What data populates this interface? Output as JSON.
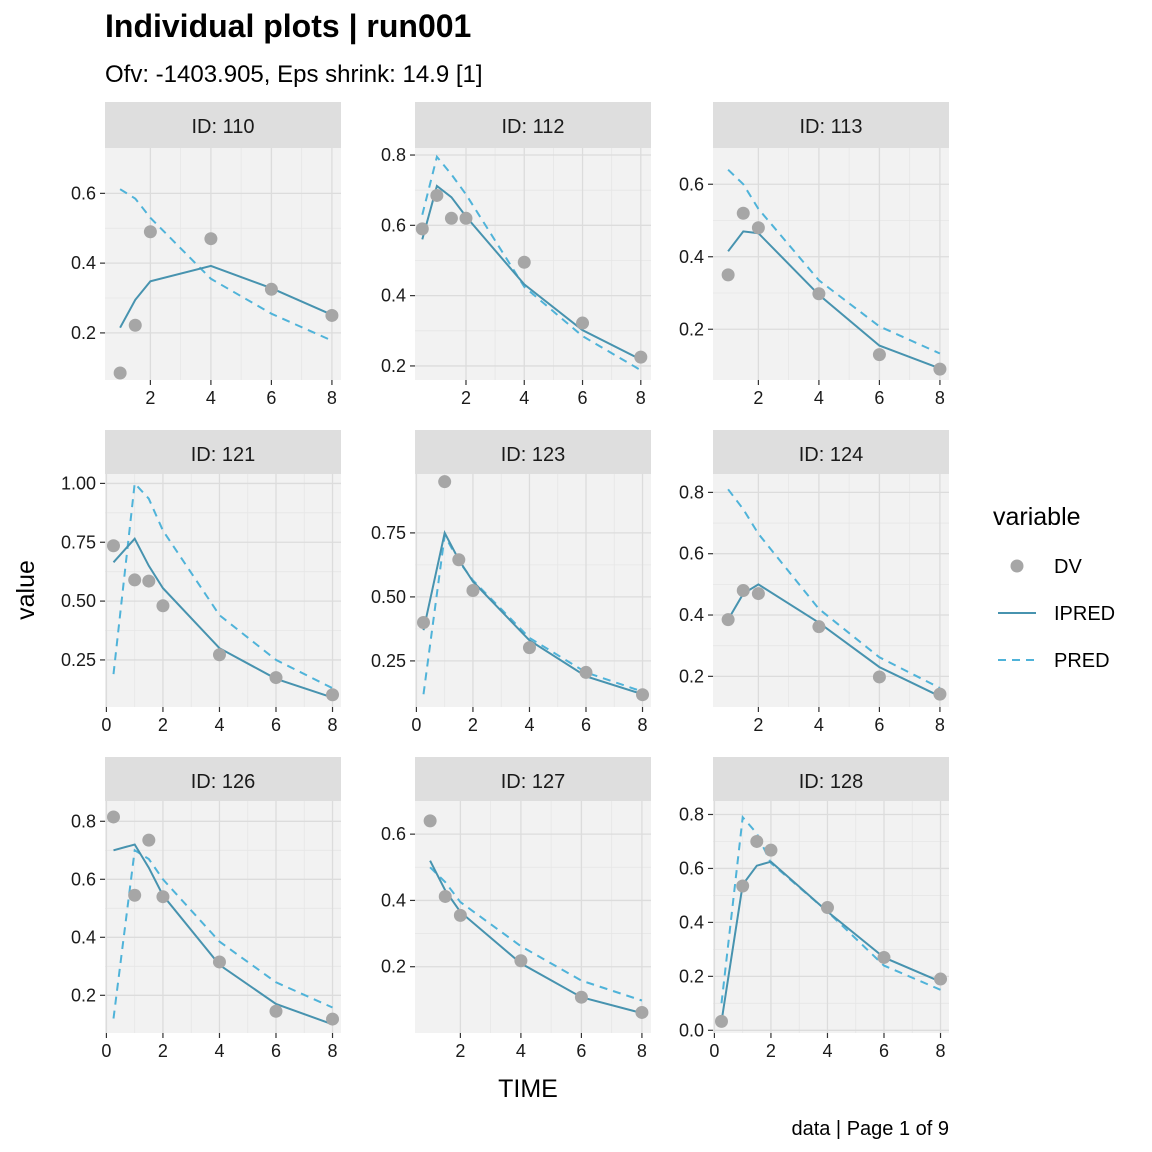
{
  "title": "Individual plots | run001",
  "subtitle": "Ofv: -1403.905, Eps shrink: 14.9 [1]",
  "xlabel": "TIME",
  "ylabel": "value",
  "caption": "data | Page 1 of 9",
  "legend": {
    "title": "variable",
    "items": [
      {
        "label": "DV",
        "kind": "point",
        "color": "#a6a6a6"
      },
      {
        "label": "IPRED",
        "kind": "solid",
        "color": "#4793af"
      },
      {
        "label": "PRED",
        "kind": "dashed",
        "color": "#4fb3d9"
      }
    ]
  },
  "colors": {
    "panel_bg": "#f2f2f2",
    "grid": "#dcdcdc",
    "strip_bg": "#dedede",
    "dv": "#a6a6a6",
    "ipred": "#4793af",
    "pred": "#4fb3d9"
  },
  "chart_data": [
    {
      "type": "line",
      "strip": "ID: 110",
      "xlim": [
        0.5,
        8.3
      ],
      "ylim": [
        0.065,
        0.73
      ],
      "xticks": [
        2,
        4,
        6,
        8
      ],
      "yticks": [
        0.2,
        0.4,
        0.6
      ],
      "ytick_labels": [
        "0.2",
        "0.4",
        "0.6"
      ],
      "dv": {
        "x": [
          1,
          1.5,
          2,
          4,
          6,
          8
        ],
        "y": [
          0.085,
          0.222,
          0.49,
          0.47,
          0.325,
          0.25
        ]
      },
      "ipred": {
        "x": [
          1,
          1.5,
          2,
          4,
          6,
          8
        ],
        "y": [
          0.215,
          0.295,
          0.348,
          0.392,
          0.328,
          0.252
        ]
      },
      "pred": {
        "x": [
          1,
          1.5,
          2,
          4,
          6,
          8
        ],
        "y": [
          0.612,
          0.585,
          0.53,
          0.355,
          0.255,
          0.178
        ]
      }
    },
    {
      "type": "line",
      "strip": "ID: 112",
      "xlim": [
        0.25,
        8.35
      ],
      "ylim": [
        0.16,
        0.82
      ],
      "xticks": [
        2,
        4,
        6,
        8
      ],
      "yticks": [
        0.2,
        0.4,
        0.6,
        0.8
      ],
      "ytick_labels": [
        "0.2",
        "0.4",
        "0.6",
        "0.8"
      ],
      "dv": {
        "x": [
          0.5,
          1,
          1.5,
          2,
          4,
          6,
          8
        ],
        "y": [
          0.59,
          0.685,
          0.62,
          0.62,
          0.495,
          0.322,
          0.225
        ]
      },
      "ipred": {
        "x": [
          0.5,
          1,
          1.5,
          2,
          4,
          6,
          8
        ],
        "y": [
          0.56,
          0.712,
          0.68,
          0.625,
          0.432,
          0.302,
          0.218
        ]
      },
      "pred": {
        "x": [
          0.5,
          1,
          1.5,
          2,
          4,
          6,
          8
        ],
        "y": [
          0.63,
          0.795,
          0.745,
          0.688,
          0.425,
          0.285,
          0.188
        ]
      }
    },
    {
      "type": "line",
      "strip": "ID: 113",
      "xlim": [
        0.5,
        8.3
      ],
      "ylim": [
        0.06,
        0.7
      ],
      "xticks": [
        2,
        4,
        6,
        8
      ],
      "yticks": [
        0.2,
        0.4,
        0.6
      ],
      "ytick_labels": [
        "0.2",
        "0.4",
        "0.6"
      ],
      "dv": {
        "x": [
          1,
          1.5,
          2,
          4,
          6,
          8
        ],
        "y": [
          0.35,
          0.52,
          0.48,
          0.298,
          0.13,
          0.09
        ]
      },
      "ipred": {
        "x": [
          1,
          1.5,
          2,
          4,
          6,
          8
        ],
        "y": [
          0.415,
          0.47,
          0.465,
          0.295,
          0.155,
          0.092
        ]
      },
      "pred": {
        "x": [
          1,
          1.5,
          2,
          4,
          6,
          8
        ],
        "y": [
          0.64,
          0.6,
          0.532,
          0.335,
          0.208,
          0.133
        ]
      }
    },
    {
      "type": "line",
      "strip": "ID: 121",
      "xlim": [
        -0.05,
        8.3
      ],
      "ylim": [
        0.05,
        1.04
      ],
      "xticks": [
        0,
        2,
        4,
        6,
        8
      ],
      "yticks": [
        0.25,
        0.5,
        0.75,
        1.0
      ],
      "ytick_labels": [
        "0.25",
        "0.50",
        "0.75",
        "1.00"
      ],
      "dv": {
        "x": [
          0.25,
          1,
          1.5,
          2,
          4,
          6,
          8
        ],
        "y": [
          0.735,
          0.59,
          0.585,
          0.48,
          0.272,
          0.175,
          0.102
        ]
      },
      "ipred": {
        "x": [
          0.25,
          1,
          1.5,
          2,
          4,
          6,
          8
        ],
        "y": [
          0.665,
          0.765,
          0.65,
          0.555,
          0.3,
          0.17,
          0.09
        ]
      },
      "pred": {
        "x": [
          0.25,
          1,
          1.5,
          2,
          4,
          6,
          8
        ],
        "y": [
          0.19,
          1.0,
          0.935,
          0.8,
          0.44,
          0.25,
          0.13
        ]
      }
    },
    {
      "type": "line",
      "strip": "ID: 123",
      "xlim": [
        -0.05,
        8.3
      ],
      "ylim": [
        0.07,
        0.98
      ],
      "xticks": [
        0,
        2,
        4,
        6,
        8
      ],
      "yticks": [
        0.25,
        0.5,
        0.75
      ],
      "ytick_labels": [
        "0.25",
        "0.50",
        "0.75"
      ],
      "dv": {
        "x": [
          0.25,
          1,
          1.5,
          2,
          4,
          6,
          8
        ],
        "y": [
          0.4,
          0.95,
          0.645,
          0.525,
          0.302,
          0.205,
          0.118
        ]
      },
      "ipred": {
        "x": [
          0.25,
          1,
          1.5,
          2,
          4,
          6,
          8
        ],
        "y": [
          0.37,
          0.75,
          0.645,
          0.56,
          0.33,
          0.19,
          0.12
        ]
      },
      "pred": {
        "x": [
          0.25,
          1,
          1.5,
          2,
          4,
          6,
          8
        ],
        "y": [
          0.12,
          0.74,
          0.64,
          0.565,
          0.34,
          0.205,
          0.13
        ]
      }
    },
    {
      "type": "line",
      "strip": "ID: 124",
      "xlim": [
        0.5,
        8.3
      ],
      "ylim": [
        0.1,
        0.86
      ],
      "xticks": [
        2,
        4,
        6,
        8
      ],
      "yticks": [
        0.2,
        0.4,
        0.6,
        0.8
      ],
      "ytick_labels": [
        "0.2",
        "0.4",
        "0.6",
        "0.8"
      ],
      "dv": {
        "x": [
          1,
          1.5,
          2,
          4,
          6,
          8
        ],
        "y": [
          0.385,
          0.48,
          0.47,
          0.362,
          0.198,
          0.142
        ]
      },
      "ipred": {
        "x": [
          1,
          1.5,
          2,
          4,
          6,
          8
        ],
        "y": [
          0.385,
          0.47,
          0.5,
          0.375,
          0.23,
          0.135
        ]
      },
      "pred": {
        "x": [
          1,
          1.5,
          2,
          4,
          6,
          8
        ],
        "y": [
          0.81,
          0.745,
          0.665,
          0.42,
          0.262,
          0.162
        ]
      }
    },
    {
      "type": "line",
      "strip": "ID: 126",
      "xlim": [
        -0.05,
        8.3
      ],
      "ylim": [
        0.07,
        0.87
      ],
      "xticks": [
        0,
        2,
        4,
        6,
        8
      ],
      "yticks": [
        0.2,
        0.4,
        0.6,
        0.8
      ],
      "ytick_labels": [
        "0.2",
        "0.4",
        "0.6",
        "0.8"
      ],
      "dv": {
        "x": [
          0.25,
          1,
          1.5,
          2,
          4,
          6,
          8
        ],
        "y": [
          0.815,
          0.545,
          0.735,
          0.54,
          0.315,
          0.145,
          0.118
        ]
      },
      "ipred": {
        "x": [
          0.25,
          1,
          1.5,
          2,
          4,
          6,
          8
        ],
        "y": [
          0.7,
          0.72,
          0.64,
          0.545,
          0.305,
          0.17,
          0.1
        ]
      },
      "pred": {
        "x": [
          0.25,
          1,
          1.5,
          2,
          4,
          6,
          8
        ],
        "y": [
          0.12,
          0.7,
          0.67,
          0.6,
          0.385,
          0.245,
          0.158
        ]
      }
    },
    {
      "type": "line",
      "strip": "ID: 127",
      "xlim": [
        0.5,
        8.3
      ],
      "ylim": [
        0.0,
        0.7
      ],
      "xticks": [
        2,
        4,
        6,
        8
      ],
      "yticks": [
        0.2,
        0.4,
        0.6
      ],
      "ytick_labels": [
        "0.2",
        "0.4",
        "0.6"
      ],
      "dv": {
        "x": [
          1,
          1.5,
          2,
          4,
          6,
          8
        ],
        "y": [
          0.64,
          0.412,
          0.355,
          0.218,
          0.108,
          0.062
        ]
      },
      "ipred": {
        "x": [
          1,
          1.5,
          2,
          4,
          6,
          8
        ],
        "y": [
          0.52,
          0.43,
          0.365,
          0.21,
          0.108,
          0.06
        ]
      },
      "pred": {
        "x": [
          1,
          1.5,
          2,
          4,
          6,
          8
        ],
        "y": [
          0.5,
          0.455,
          0.395,
          0.262,
          0.158,
          0.098
        ]
      }
    },
    {
      "type": "line",
      "strip": "ID: 128",
      "xlim": [
        -0.05,
        8.3
      ],
      "ylim": [
        -0.01,
        0.85
      ],
      "xticks": [
        0,
        2,
        4,
        6,
        8
      ],
      "yticks": [
        0.0,
        0.2,
        0.4,
        0.6,
        0.8
      ],
      "ytick_labels": [
        "0.0",
        "0.2",
        "0.4",
        "0.6",
        "0.8"
      ],
      "dv": {
        "x": [
          0.25,
          1,
          1.5,
          2,
          4,
          6,
          8
        ],
        "y": [
          0.033,
          0.535,
          0.7,
          0.668,
          0.455,
          0.27,
          0.19
        ]
      },
      "ipred": {
        "x": [
          0.25,
          1,
          1.5,
          2,
          4,
          6,
          8
        ],
        "y": [
          0.033,
          0.54,
          0.61,
          0.625,
          0.44,
          0.27,
          0.18
        ]
      },
      "pred": {
        "x": [
          0.25,
          1,
          1.5,
          2,
          4,
          6,
          8
        ],
        "y": [
          0.1,
          0.79,
          0.73,
          0.62,
          0.44,
          0.24,
          0.15
        ]
      }
    }
  ]
}
